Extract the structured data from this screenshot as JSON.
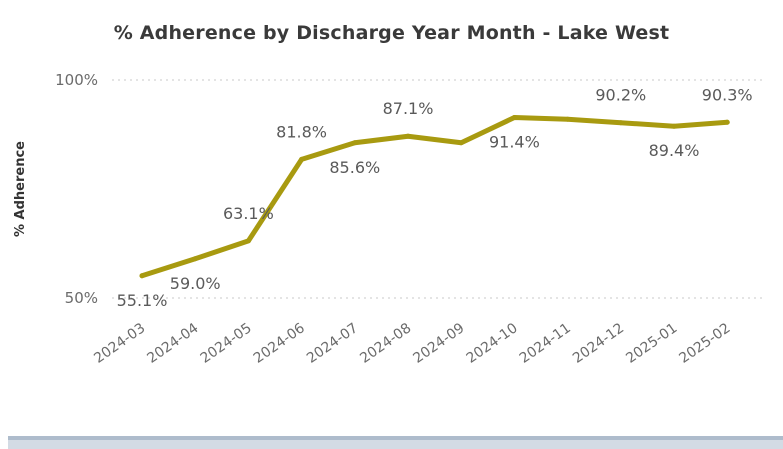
{
  "chart_data": {
    "type": "line",
    "title": "% Adherence by Discharge Year Month - Lake West",
    "xlabel": "",
    "ylabel": "% Adherence",
    "ylim": [
      50,
      100
    ],
    "yticks": [
      "100%",
      "50%"
    ],
    "grid": true,
    "legend": "none",
    "categories": [
      "2024-03",
      "2024-04",
      "2024-05",
      "2024-06",
      "2024-07",
      "2024-08",
      "2024-09",
      "2024-10",
      "2024-11",
      "2024-12",
      "2025-01",
      "2025-02"
    ],
    "values": [
      55.1,
      59.0,
      63.1,
      81.8,
      85.6,
      87.1,
      85.6,
      91.4,
      91.0,
      90.2,
      89.4,
      90.3
    ],
    "data_labels": [
      {
        "index": 0,
        "text": "55.1%",
        "pos": "below"
      },
      {
        "index": 1,
        "text": "59.0%",
        "pos": "below"
      },
      {
        "index": 2,
        "text": "63.1%",
        "pos": "above"
      },
      {
        "index": 3,
        "text": "81.8%",
        "pos": "above"
      },
      {
        "index": 4,
        "text": "85.6%",
        "pos": "below"
      },
      {
        "index": 5,
        "text": "87.1%",
        "pos": "above"
      },
      {
        "index": 7,
        "text": "91.4%",
        "pos": "below"
      },
      {
        "index": 9,
        "text": "90.2%",
        "pos": "above"
      },
      {
        "index": 10,
        "text": "89.4%",
        "pos": "below"
      },
      {
        "index": 11,
        "text": "90.3%",
        "pos": "above"
      }
    ],
    "line_color": "#a89a10"
  }
}
